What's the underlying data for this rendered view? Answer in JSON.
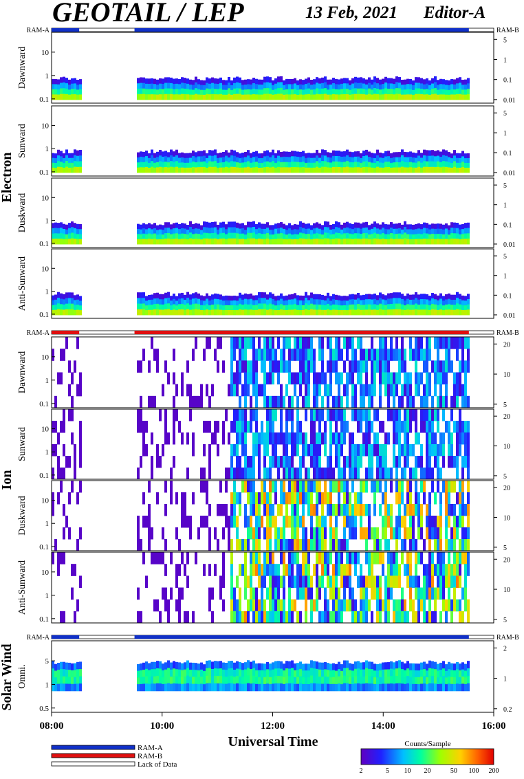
{
  "header": {
    "title": "GEOTAIL / LEP",
    "date": "13 Feb, 2021",
    "editor": "Editor-A"
  },
  "chart_data": {
    "type": "heatmap",
    "xlabel": "Universal Time",
    "x_ticks": [
      "08:00",
      "10:00",
      "12:00",
      "14:00",
      "16:00"
    ],
    "x_range_hours": [
      8,
      16
    ],
    "mode_bars": [
      {
        "left": "RAM-A",
        "right": "RAM-B"
      },
      {
        "left": "RAM-A",
        "right": "RAM-B"
      },
      {
        "left": "RAM-A",
        "right": "RAM-B"
      }
    ],
    "groups": [
      {
        "name": "Electron",
        "panels": [
          {
            "label": "Dawnward",
            "y_ticks": [
              "10",
              "1",
              "0.1"
            ],
            "right_ticks": [
              "5",
              "1",
              "0.1",
              "0.01"
            ]
          },
          {
            "label": "Sunward",
            "y_ticks": [
              "10",
              "1",
              "0.1"
            ],
            "right_ticks": [
              "5",
              "1",
              "0.1",
              "0.01"
            ]
          },
          {
            "label": "Duskward",
            "y_ticks": [
              "10",
              "1",
              "0.1"
            ],
            "right_ticks": [
              "5",
              "1",
              "0.1",
              "0.01"
            ]
          },
          {
            "label": "Anti-Sunward",
            "y_ticks": [
              "10",
              "1",
              "0.1"
            ],
            "right_ticks": [
              "5",
              "1",
              "0.1",
              "0.01"
            ]
          }
        ]
      },
      {
        "name": "Ion",
        "panels": [
          {
            "label": "Dawnward",
            "y_ticks": [
              "10",
              "1",
              "0.1"
            ],
            "right_ticks": [
              "20",
              "10",
              "5"
            ]
          },
          {
            "label": "Sunward",
            "y_ticks": [
              "10",
              "1",
              "0.1"
            ],
            "right_ticks": [
              "20",
              "10",
              "5"
            ]
          },
          {
            "label": "Duskward",
            "y_ticks": [
              "10",
              "1",
              "0.1"
            ],
            "right_ticks": [
              "20",
              "10",
              "5"
            ]
          },
          {
            "label": "Anti-Sunward",
            "y_ticks": [
              "10",
              "1",
              "0.1"
            ],
            "right_ticks": [
              "20",
              "10",
              "5"
            ]
          }
        ]
      },
      {
        "name": "Solar Wind",
        "panels": [
          {
            "label": "Omni.",
            "y_ticks": [
              "5",
              "1",
              "0.5"
            ],
            "right_ticks": [
              "2",
              "1",
              "0.2"
            ]
          }
        ]
      }
    ],
    "data_gaps_hours": [
      [
        8.5,
        9.5
      ],
      [
        15.55,
        16.0
      ]
    ],
    "legend": [
      {
        "label": "RAM-A",
        "color": "#1030c8"
      },
      {
        "label": "RAM-B",
        "color": "#e01010"
      },
      {
        "label": "Lack of Data",
        "color": "#ffffff"
      }
    ],
    "colorbar": {
      "title": "Counts/Sample",
      "ticks": [
        "2",
        "5",
        "10",
        "20",
        "50",
        "100",
        "200"
      ],
      "scale": "log"
    }
  }
}
